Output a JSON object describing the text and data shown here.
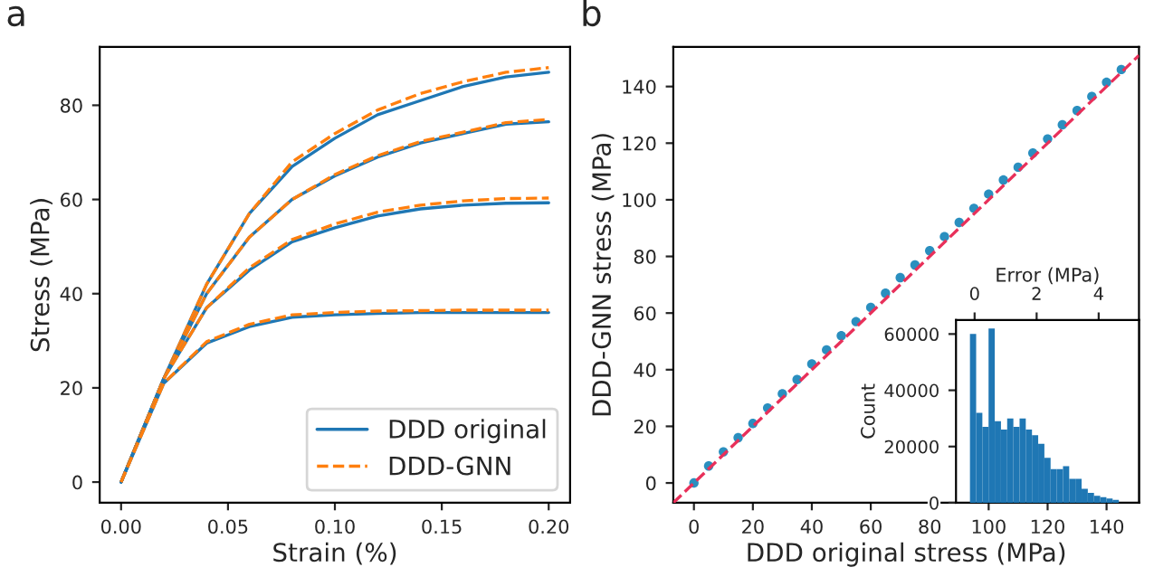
{
  "chart_data": [
    {
      "type": "line",
      "xlabel": "Strain (%)",
      "ylabel": "Stress (MPa)",
      "annotations": [
        "a"
      ],
      "legend": "bottom right",
      "grid": false,
      "x": [
        0,
        0.02,
        0.04,
        0.06,
        0.08,
        0.1,
        0.12,
        0.14,
        0.16,
        0.18,
        0.2
      ],
      "xlim": [
        -0.01,
        0.21
      ],
      "ylim": [
        -4.4,
        92.4
      ],
      "xticks": [
        {
          "value": 0,
          "label": "0.00"
        },
        {
          "value": 0.05,
          "label": "0.05"
        },
        {
          "value": 0.1,
          "label": "0.10"
        },
        {
          "value": 0.15,
          "label": "0.15"
        },
        {
          "value": 0.2,
          "label": "0.20"
        }
      ],
      "yticks": [
        0,
        20,
        40,
        60,
        80
      ],
      "series": [
        {
          "name": "DDD original",
          "color": "#1f77b4",
          "line_style": "solid",
          "values": [
            0,
            22,
            42,
            57,
            67,
            73,
            78,
            81,
            84,
            86,
            87
          ]
        },
        {
          "name": "DDD-GNN",
          "color": "#ff7f0e",
          "line_style": "dashed",
          "values": [
            0,
            22,
            42,
            57,
            68,
            74,
            79,
            82.5,
            85,
            87,
            88
          ]
        },
        {
          "color": "#1f77b4",
          "line_style": "solid",
          "values": [
            0,
            22,
            40,
            52,
            60,
            65,
            69,
            72,
            74,
            76,
            76.5
          ]
        },
        {
          "color": "#ff7f0e",
          "line_style": "dashed",
          "values": [
            0,
            22,
            40,
            52,
            60,
            65.3,
            69.3,
            72.3,
            74.3,
            76.3,
            77
          ]
        },
        {
          "color": "#1f77b4",
          "line_style": "solid",
          "values": [
            0,
            22,
            37,
            45,
            51,
            54,
            56.5,
            58,
            58.8,
            59.2,
            59.3
          ]
        },
        {
          "color": "#ff7f0e",
          "line_style": "dashed",
          "values": [
            0,
            22,
            37,
            45.5,
            51.5,
            54.8,
            57.3,
            58.8,
            59.7,
            60.2,
            60.3
          ]
        },
        {
          "color": "#1f77b4",
          "line_style": "solid",
          "values": [
            0,
            21,
            29.5,
            33,
            35,
            35.5,
            35.8,
            36,
            36,
            36,
            36
          ]
        },
        {
          "color": "#ff7f0e",
          "line_style": "dashed",
          "values": [
            0,
            21,
            29.8,
            33.5,
            35.5,
            36,
            36.3,
            36.4,
            36.5,
            36.5,
            36.5
          ]
        }
      ]
    },
    {
      "type": "scatter",
      "xlabel": "DDD original stress (MPa)",
      "ylabel": "DDD-GNN stress (MPa)",
      "annotations": [
        "b"
      ],
      "grid": false,
      "xlim": [
        -7,
        151
      ],
      "ylim": [
        -7,
        154
      ],
      "xticks": [
        0,
        20,
        40,
        60,
        80,
        100,
        120,
        140
      ],
      "yticks": [
        0,
        20,
        40,
        60,
        80,
        100,
        120,
        140
      ],
      "series": [
        {
          "color": "#2a8fbf",
          "marker": "circle",
          "x": [
            0,
            5,
            10,
            15,
            20,
            25,
            30,
            35,
            40,
            45,
            50,
            55,
            60,
            65,
            70,
            75,
            80,
            85,
            90,
            95,
            100,
            105,
            110,
            115,
            120,
            125,
            130,
            135,
            140,
            145
          ],
          "values": [
            0,
            6,
            11,
            16,
            21,
            26.5,
            31.5,
            36.5,
            42,
            47,
            52,
            57,
            62,
            67,
            72.5,
            77,
            82,
            87,
            92,
            97,
            102,
            107,
            111.5,
            116.5,
            121.5,
            126.5,
            131.5,
            136.5,
            141.5,
            146
          ]
        },
        {
          "type": "line",
          "color": "#e8305a",
          "line_style": "dashed",
          "marker": "none",
          "x": [
            -7,
            151
          ],
          "values": [
            -7,
            151
          ]
        }
      ]
    },
    {
      "type": "histogram",
      "xlabel": "Error (MPa)",
      "ylabel": "Count",
      "grid": false,
      "color": "#1f77b4",
      "xlim": [
        -0.6,
        5.3
      ],
      "ylim": [
        0,
        65000
      ],
      "xticks": [
        0,
        2,
        4
      ],
      "yticks": [
        0,
        20000,
        40000,
        60000
      ],
      "bins": [
        -0.15,
        0.05,
        0.25,
        0.45,
        0.65,
        0.85,
        1.05,
        1.25,
        1.45,
        1.65,
        1.85,
        2.05,
        2.25,
        2.45,
        2.65,
        2.85,
        3.05,
        3.25,
        3.45,
        3.65,
        3.85,
        4.05,
        4.25,
        4.45,
        4.65
      ],
      "values": [
        60000,
        32000,
        27000,
        62000,
        29000,
        26000,
        30000,
        27000,
        30000,
        26000,
        24000,
        21000,
        16000,
        12000,
        12000,
        13000,
        8500,
        8500,
        5000,
        3500,
        2500,
        2000,
        1500,
        1000
      ]
    }
  ]
}
